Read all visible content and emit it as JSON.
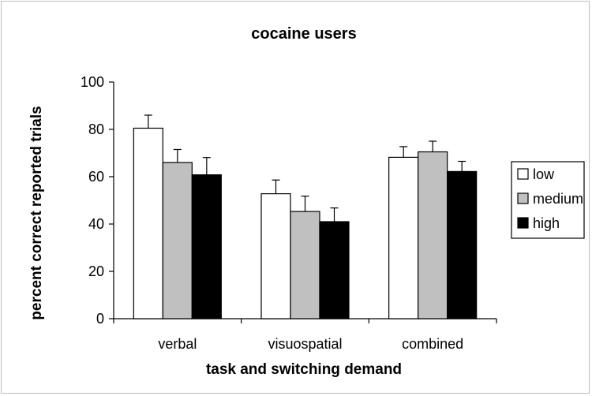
{
  "chart_data": {
    "type": "bar",
    "title": "cocaine users",
    "xlabel": "task and switching demand",
    "ylabel": "percent correct reported trials",
    "categories": [
      "verbal",
      "visuospatial",
      "combined"
    ],
    "series": [
      {
        "name": "low",
        "color": "#ffffff",
        "values": [
          80.5,
          52.8,
          68.2
        ],
        "errors": [
          5.5,
          5.8,
          4.5
        ]
      },
      {
        "name": "medium",
        "color": "#c0c0c0",
        "values": [
          66.0,
          45.3,
          70.5
        ],
        "errors": [
          5.5,
          6.5,
          4.5
        ]
      },
      {
        "name": "high",
        "color": "#000000",
        "values": [
          60.8,
          41.0,
          62.2
        ],
        "errors": [
          7.3,
          5.8,
          4.3
        ]
      }
    ],
    "ylim": [
      0,
      100
    ],
    "yticks": [
      0,
      20,
      40,
      60,
      80,
      100
    ],
    "grid": false,
    "legend_position": "right"
  }
}
